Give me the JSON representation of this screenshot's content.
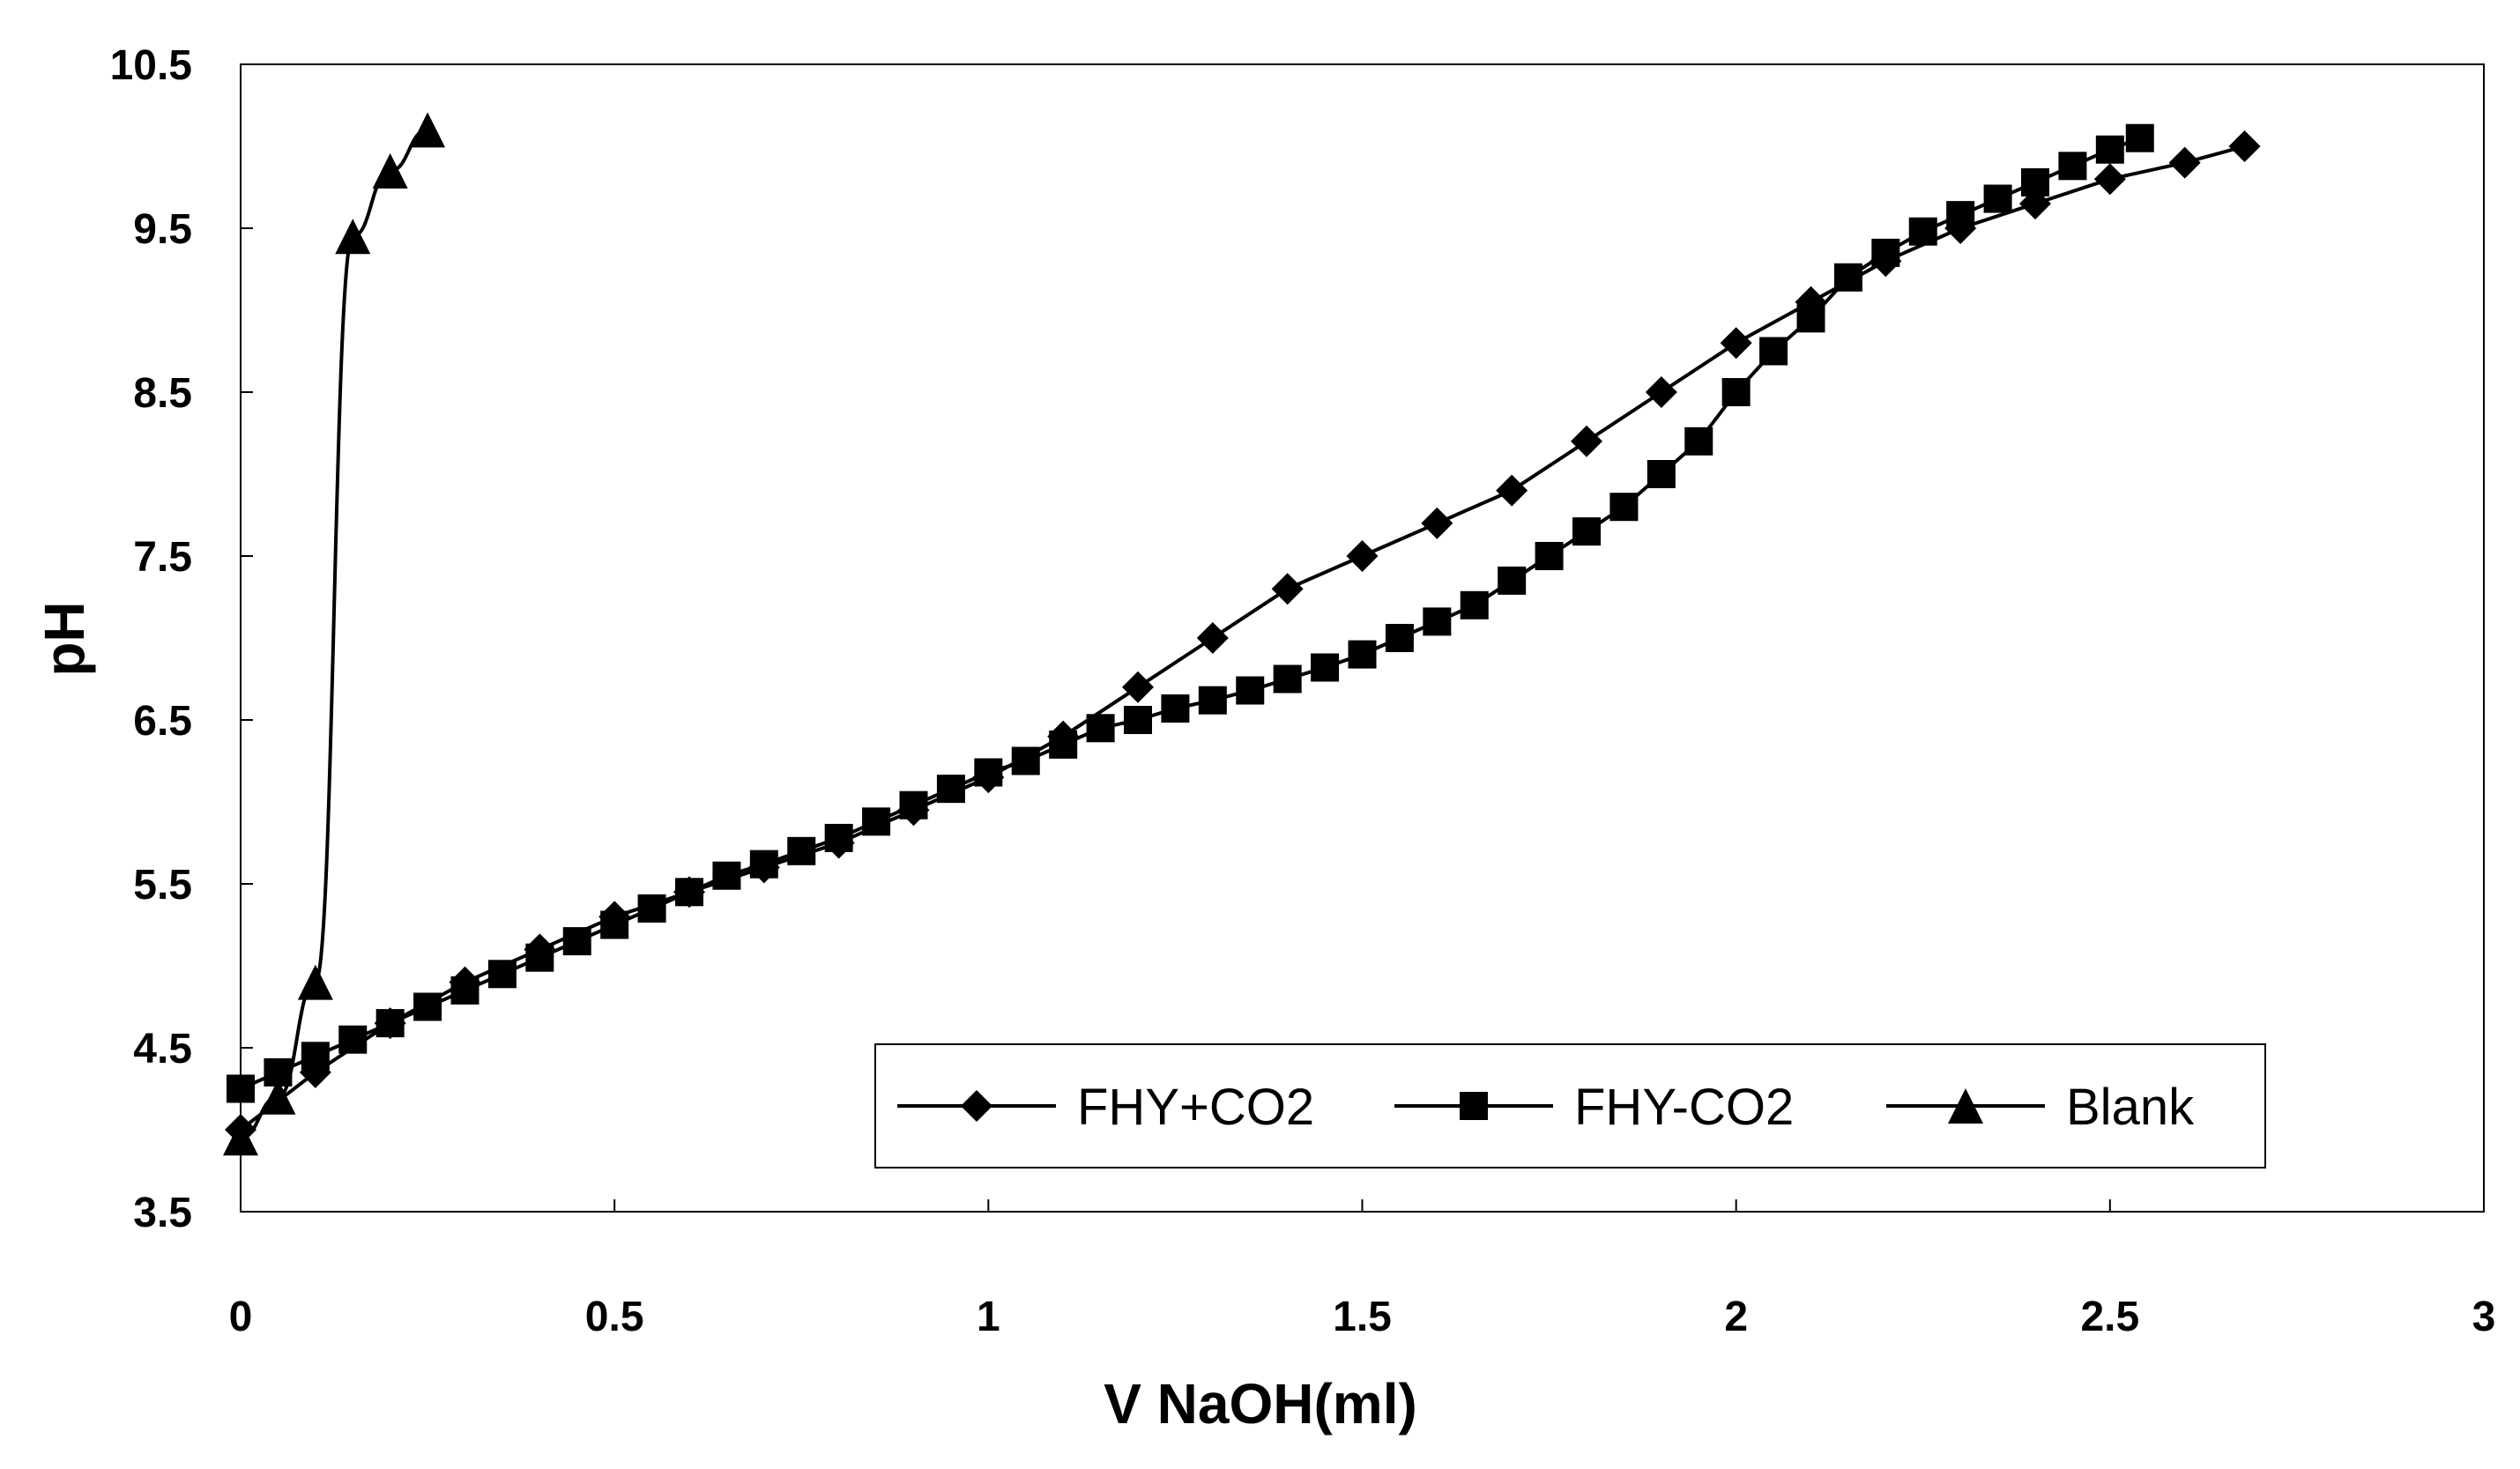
{
  "chart_data": {
    "type": "line",
    "title": "",
    "xlabel": "V NaOH(ml)",
    "ylabel": "pH",
    "xlim": [
      0,
      3
    ],
    "ylim": [
      3.5,
      10.5
    ],
    "xticks": [
      "0",
      "0.5",
      "1",
      "1.5",
      "2",
      "2.5",
      "3"
    ],
    "yticks": [
      "3.5",
      "4.5",
      "5.5",
      "6.5",
      "7.5",
      "8.5",
      "9.5",
      "10.5"
    ],
    "grid": false,
    "legend_position": "bottom-right",
    "series": [
      {
        "name": "FHY+CO2",
        "marker": "diamond",
        "color": "#000000",
        "x": [
          0.0,
          0.1,
          0.2,
          0.3,
          0.4,
          0.5,
          0.6,
          0.7,
          0.8,
          0.9,
          1.0,
          1.1,
          1.2,
          1.3,
          1.4,
          1.5,
          1.6,
          1.7,
          1.8,
          1.9,
          2.0,
          2.1,
          2.2,
          2.3,
          2.4,
          2.5,
          2.6,
          2.68
        ],
        "y": [
          4.0,
          4.35,
          4.65,
          4.9,
          5.1,
          5.3,
          5.45,
          5.6,
          5.75,
          5.95,
          6.15,
          6.4,
          6.7,
          7.0,
          7.3,
          7.5,
          7.7,
          7.9,
          8.2,
          8.5,
          8.8,
          9.05,
          9.3,
          9.5,
          9.65,
          9.8,
          9.9,
          10.0
        ]
      },
      {
        "name": "FHY-CO2",
        "marker": "square",
        "color": "#000000",
        "x": [
          0.0,
          0.05,
          0.1,
          0.15,
          0.2,
          0.25,
          0.3,
          0.35,
          0.4,
          0.45,
          0.5,
          0.55,
          0.6,
          0.65,
          0.7,
          0.75,
          0.8,
          0.85,
          0.9,
          0.95,
          1.0,
          1.05,
          1.1,
          1.15,
          1.2,
          1.25,
          1.3,
          1.35,
          1.4,
          1.45,
          1.5,
          1.55,
          1.6,
          1.65,
          1.7,
          1.75,
          1.8,
          1.85,
          1.9,
          1.95,
          2.0,
          2.05,
          2.1,
          2.15,
          2.2,
          2.25,
          2.3,
          2.35,
          2.4,
          2.45,
          2.5,
          2.54
        ],
        "y": [
          4.25,
          4.35,
          4.45,
          4.55,
          4.65,
          4.75,
          4.85,
          4.95,
          5.05,
          5.15,
          5.25,
          5.35,
          5.45,
          5.55,
          5.62,
          5.7,
          5.78,
          5.88,
          5.98,
          6.08,
          6.18,
          6.25,
          6.35,
          6.45,
          6.5,
          6.57,
          6.62,
          6.68,
          6.75,
          6.82,
          6.9,
          7.0,
          7.1,
          7.2,
          7.35,
          7.5,
          7.65,
          7.8,
          8.0,
          8.2,
          8.5,
          8.75,
          8.95,
          9.2,
          9.35,
          9.48,
          9.58,
          9.68,
          9.78,
          9.88,
          9.98,
          10.05
        ]
      },
      {
        "name": "Blank",
        "marker": "triangle",
        "color": "#000000",
        "x": [
          0.0,
          0.05,
          0.1,
          0.15,
          0.2,
          0.25
        ],
        "y": [
          3.95,
          4.2,
          4.9,
          9.45,
          9.85,
          10.1
        ]
      }
    ]
  }
}
